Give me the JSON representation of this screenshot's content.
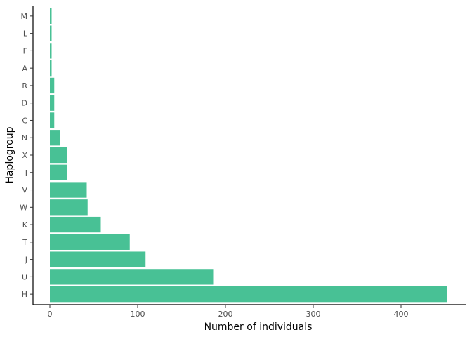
{
  "chart_data": {
    "type": "bar",
    "orientation": "horizontal",
    "title": "",
    "xlabel": "Number of individuals",
    "ylabel": "Haplogroup",
    "categories": [
      "H",
      "U",
      "J",
      "T",
      "K",
      "W",
      "V",
      "I",
      "X",
      "N",
      "C",
      "D",
      "R",
      "A",
      "F",
      "L",
      "M"
    ],
    "values": [
      452,
      186,
      109,
      91,
      58,
      43,
      42,
      20,
      20,
      12,
      5,
      5,
      5,
      2,
      2,
      2,
      2
    ],
    "xlim": [
      0,
      470
    ],
    "xticks": [
      0,
      100,
      200,
      300,
      400
    ],
    "bar_color": "#48C195",
    "grid": false,
    "legend": "none"
  }
}
